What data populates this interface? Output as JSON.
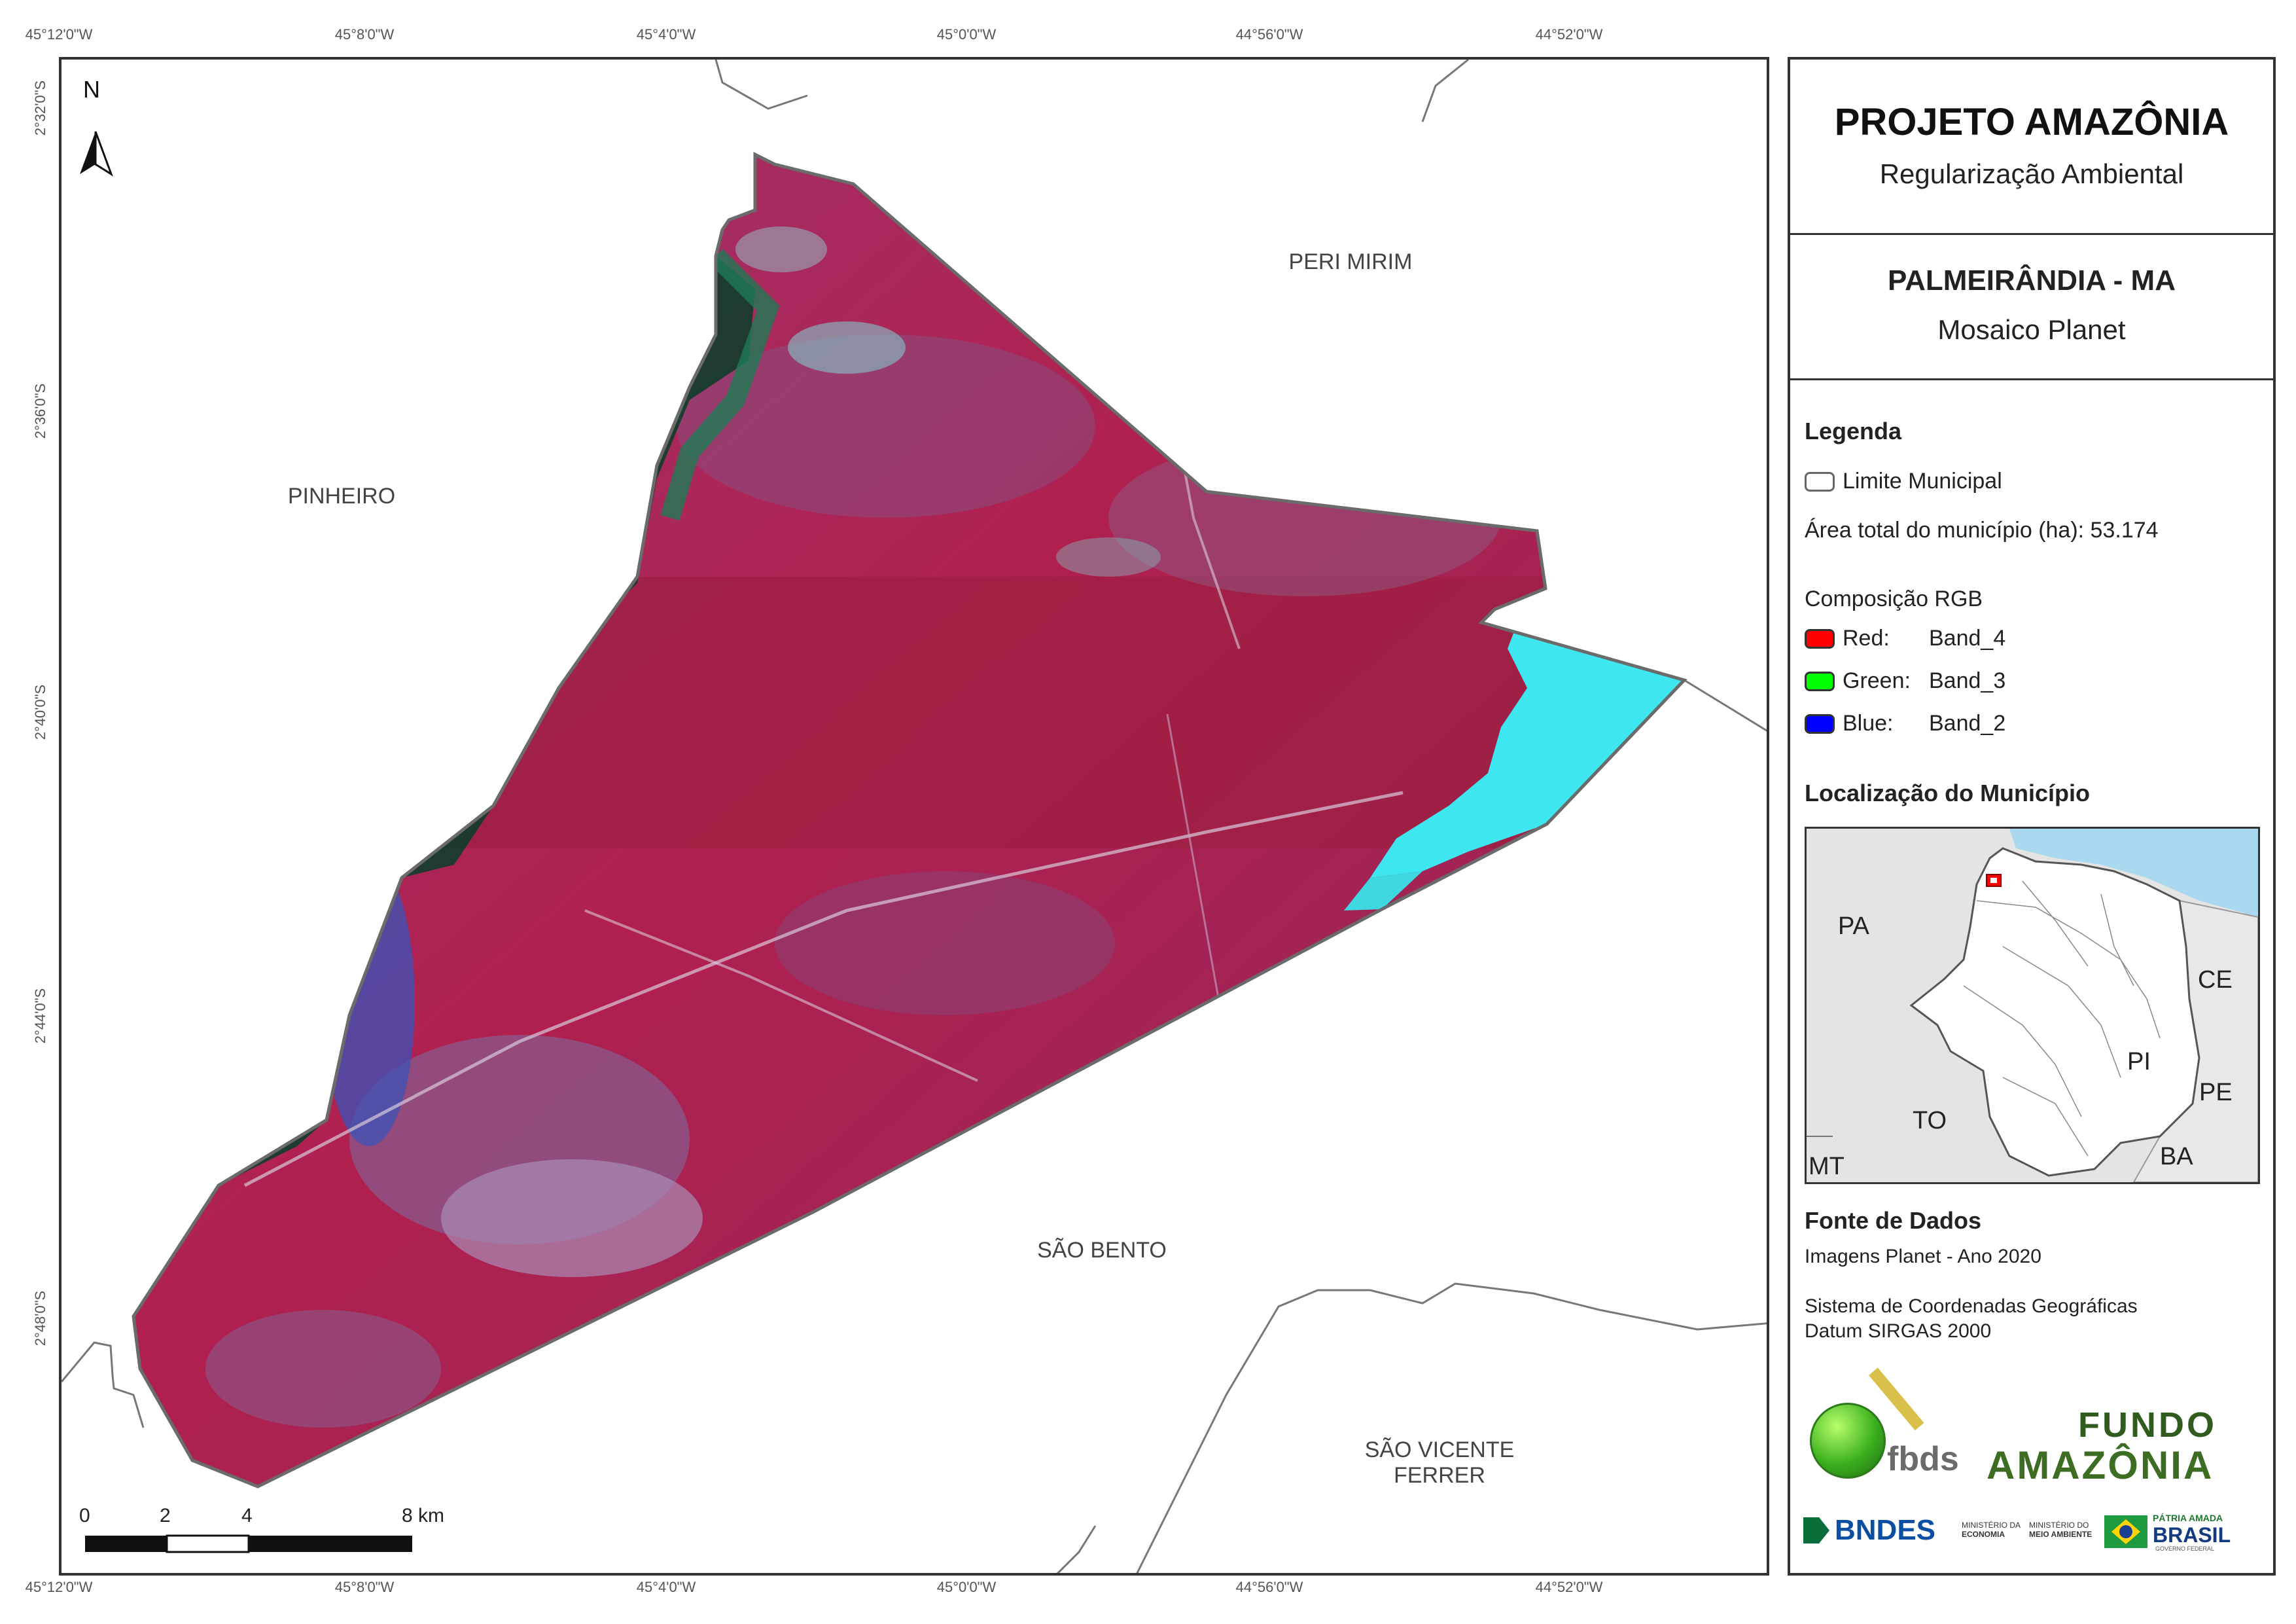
{
  "coords": {
    "top": [
      "45°12'0\"W",
      "45°8'0\"W",
      "45°4'0\"W",
      "45°0'0\"W",
      "44°56'0\"W",
      "44°52'0\"W"
    ],
    "bottom": [
      "45°12'0\"W",
      "45°8'0\"W",
      "45°4'0\"W",
      "45°0'0\"W",
      "44°56'0\"W",
      "44°52'0\"W"
    ],
    "left": [
      "2°32'0\"S",
      "2°36'0\"S",
      "2°40'0\"S",
      "2°44'0\"S",
      "2°48'0\"S"
    ]
  },
  "map": {
    "north_label": "N",
    "municipalities": {
      "peri_mirim": "PERI MIRIM",
      "pinheiro": "PINHEIRO",
      "sao_bento": "SÃO BENTO",
      "sao_vicente_line1": "SÃO VICENTE",
      "sao_vicente_line2": "FERRER"
    },
    "scale_bar": {
      "labels": [
        "0",
        "2",
        "4",
        "8 km"
      ]
    }
  },
  "panel": {
    "title": "PROJETO AMAZÔNIA",
    "subtitle": "Regularização Ambiental",
    "map_title": "PALMEIRÂNDIA - MA",
    "map_subtitle": "Mosaico Planet",
    "legend": {
      "heading": "Legenda",
      "limit_label": "Limite Municipal",
      "area_text": "Área total do município (ha): 53.174",
      "rgb_heading": "Composição RGB",
      "bands": [
        {
          "channel": "Red:",
          "band": "Band_4",
          "color": "#ff0000"
        },
        {
          "channel": "Green:",
          "band": "Band_3",
          "color": "#00ff00"
        },
        {
          "channel": "Blue:",
          "band": "Band_2",
          "color": "#0000ff"
        }
      ]
    },
    "location": {
      "heading": "Localização do Município",
      "states": [
        "PA",
        "CE",
        "PI",
        "PE",
        "TO",
        "BA",
        "MT"
      ]
    },
    "sources": {
      "heading": "Fonte de Dados",
      "line1": "Imagens Planet - Ano 2020",
      "line2": "Sistema de Coordenadas Geográficas",
      "line3": "Datum SIRGAS 2000"
    },
    "logos": {
      "fbds": "fbds",
      "fundo1": "FUNDO",
      "fundo2": "AMAZÔNIA",
      "bndes": "BNDES",
      "min_economia_1": "MINISTÉRIO DA",
      "min_economia_2": "ECONOMIA",
      "min_meio_1": "MINISTÉRIO DO",
      "min_meio_2": "MEIO AMBIENTE",
      "patria1": "PÁTRIA AMADA",
      "patria2": "BRASIL",
      "patria3": "GOVERNO FEDERAL"
    }
  }
}
